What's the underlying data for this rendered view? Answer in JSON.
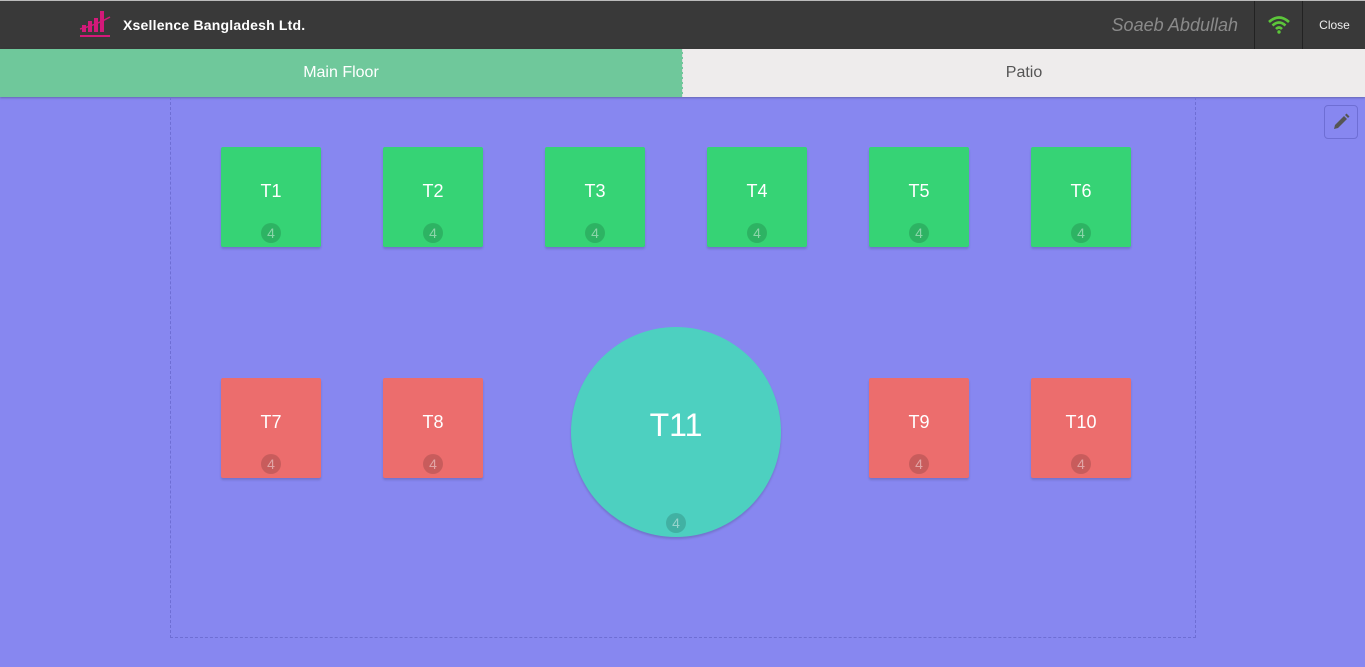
{
  "header": {
    "brand": "Xsellence Bangladesh Ltd.",
    "logo_text": "Xsellence",
    "user": "Soaeb Abdullah",
    "close_label": "Close",
    "wifi_icon": "wifi-icon",
    "wifi_color": "#5cc63a"
  },
  "tabs": [
    {
      "label": "Main Floor",
      "active": true
    },
    {
      "label": "Patio",
      "active": false
    }
  ],
  "floor": {
    "edit_icon": "pencil-icon",
    "tables": [
      {
        "name": "T1",
        "seats": "4",
        "status_color": "#36d375"
      },
      {
        "name": "T2",
        "seats": "4",
        "status_color": "#36d375"
      },
      {
        "name": "T3",
        "seats": "4",
        "status_color": "#36d375"
      },
      {
        "name": "T4",
        "seats": "4",
        "status_color": "#36d375"
      },
      {
        "name": "T5",
        "seats": "4",
        "status_color": "#36d375"
      },
      {
        "name": "T6",
        "seats": "4",
        "status_color": "#36d375"
      },
      {
        "name": "T7",
        "seats": "4",
        "status_color": "#ec6d6d"
      },
      {
        "name": "T8",
        "seats": "4",
        "status_color": "#ec6d6d"
      },
      {
        "name": "T9",
        "seats": "4",
        "status_color": "#ec6d6d"
      },
      {
        "name": "T10",
        "seats": "4",
        "status_color": "#ec6d6d"
      },
      {
        "name": "T11",
        "seats": "4",
        "status_color": "#4dd0c0",
        "shape": "round"
      }
    ]
  }
}
